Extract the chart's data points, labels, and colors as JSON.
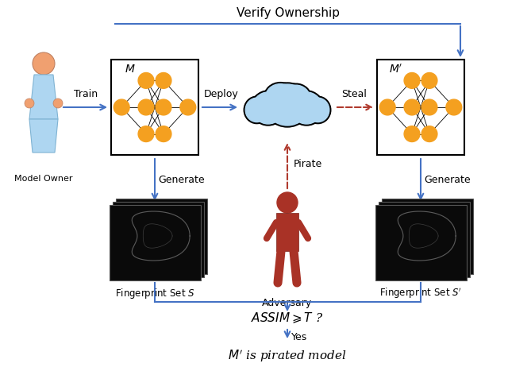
{
  "title": "Verify Ownership",
  "model_owner_label": "Model Owner",
  "train_label": "Train",
  "deploy_label": "Deploy",
  "steal_label": "Steal",
  "generate_label1": "Generate",
  "generate_label2": "Generate",
  "pirate_label": "Pirate",
  "adversary_label": "Adversary",
  "fingerprint_label1": "Fingerprint Set $S$",
  "fingerprint_label2": "Fingerprint Set $S'$",
  "assim_label": "$ASSIM \\geqslant T$ ?",
  "yes_label": "Yes",
  "pirated_label": "$M'$ is pirated model",
  "M_label": "$M$",
  "Mprime_label": "$M'$",
  "bg_color": "#ffffff",
  "blue": "#4472C4",
  "red": "#B03A2E",
  "orange": "#F4A020",
  "cloud_color": "#AED6F1",
  "owner_body_color": "#AED6F1",
  "owner_head_color": "#F0A070",
  "adversary_color": "#A93226"
}
